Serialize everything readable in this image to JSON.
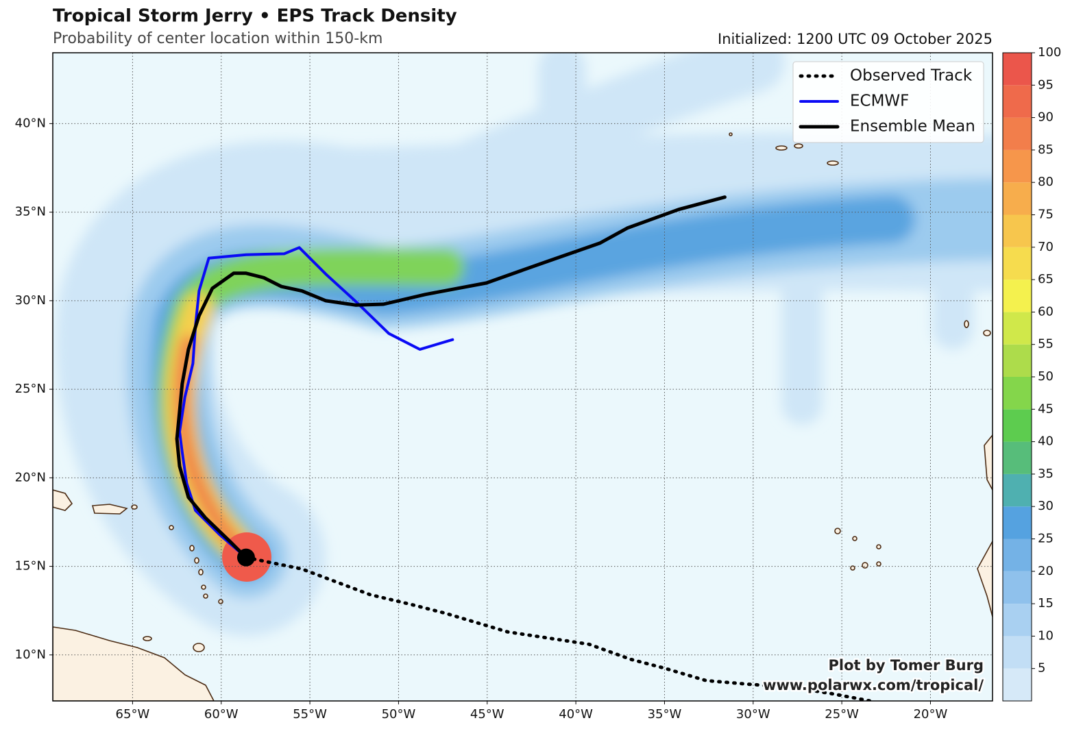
{
  "header": {
    "title": "Tropical Storm Jerry • EPS Track Density",
    "subtitle": "Probability of center location within 150-km",
    "initialized": "Initialized: 1200 UTC 09 October 2025"
  },
  "map": {
    "xlim": [
      -69.5,
      -16.5
    ],
    "ylim": [
      7.4,
      44.0
    ],
    "xticks": [
      {
        "value": -65,
        "label": "65°W"
      },
      {
        "value": -60,
        "label": "60°W"
      },
      {
        "value": -55,
        "label": "55°W"
      },
      {
        "value": -50,
        "label": "50°W"
      },
      {
        "value": -45,
        "label": "45°W"
      },
      {
        "value": -40,
        "label": "40°W"
      },
      {
        "value": -35,
        "label": "35°W"
      },
      {
        "value": -30,
        "label": "30°W"
      },
      {
        "value": -25,
        "label": "25°W"
      },
      {
        "value": -20,
        "label": "20°W"
      }
    ],
    "yticks": [
      {
        "value": 10,
        "label": "10°N"
      },
      {
        "value": 15,
        "label": "15°N"
      },
      {
        "value": 20,
        "label": "20°N"
      },
      {
        "value": 25,
        "label": "25°N"
      },
      {
        "value": 30,
        "label": "30°N"
      },
      {
        "value": 35,
        "label": "35°N"
      },
      {
        "value": 40,
        "label": "40°N"
      }
    ],
    "grid": true,
    "tracks": [
      {
        "name": "Observed Track",
        "color": "#000000",
        "style": "dotted",
        "lon": [
          -58.6,
          -55.45,
          -51.6,
          -49.3,
          -47.35,
          -43.85,
          -39.25,
          -36.9,
          -35.0,
          -32.65,
          -30.35,
          -27.65,
          -25.5,
          -23.4
        ],
        "lat": [
          15.5,
          14.85,
          13.4,
          12.85,
          12.35,
          11.3,
          10.6,
          9.75,
          9.25,
          8.55,
          8.35,
          8.15,
          7.8,
          7.4
        ]
      },
      {
        "name": "ECMWF",
        "color": "#0a0af5",
        "style": "solid",
        "lon": [
          -58.6,
          -60.1,
          -61.45,
          -61.95,
          -62.2,
          -62.35,
          -62.05,
          -61.6,
          -61.45,
          -61.25,
          -60.7,
          -58.6,
          -56.45,
          -55.6,
          -54.1,
          -52.4,
          -50.55,
          -48.8,
          -46.95
        ],
        "lat": [
          15.5,
          16.8,
          18.15,
          19.7,
          21.45,
          22.6,
          24.55,
          26.45,
          28.6,
          30.55,
          32.4,
          32.6,
          32.65,
          33.0,
          31.5,
          29.95,
          28.15,
          27.25,
          27.8
        ]
      },
      {
        "name": "Ensemble Mean",
        "color": "#000000",
        "style": "thick",
        "lon": [
          -58.6,
          -59.5,
          -60.9,
          -61.85,
          -62.35,
          -62.5,
          -62.35,
          -62.2,
          -61.85,
          -61.25,
          -60.5,
          -59.3,
          -58.6,
          -57.6,
          -56.6,
          -55.45,
          -54.1,
          -52.4,
          -50.85,
          -48.5,
          -45.05,
          -41.95,
          -38.65,
          -37.1,
          -34.2,
          -31.6
        ],
        "lat": [
          15.5,
          16.4,
          17.75,
          18.9,
          20.65,
          22.2,
          23.75,
          25.3,
          27.25,
          29.15,
          30.7,
          31.55,
          31.55,
          31.3,
          30.8,
          30.55,
          30.0,
          29.75,
          29.8,
          30.35,
          31.0,
          32.1,
          33.25,
          34.1,
          35.15,
          35.85
        ]
      }
    ],
    "colorbar": {
      "range": [
        0,
        100
      ],
      "ticks": [
        5,
        10,
        15,
        20,
        25,
        30,
        35,
        40,
        45,
        50,
        55,
        60,
        65,
        70,
        75,
        80,
        85,
        90,
        95,
        100
      ],
      "colors": [
        "#d6e9f8",
        "#c2def5",
        "#a9d0f1",
        "#8fc1ec",
        "#74b2e6",
        "#55a2e0",
        "#4fb0b0",
        "#57bd7a",
        "#5dcc4f",
        "#84d64b",
        "#addc4b",
        "#d0e84a",
        "#f4f14e",
        "#f6dc4e",
        "#f7c64d",
        "#f7ad4c",
        "#f6964b",
        "#f27e4b",
        "#ef6a4b",
        "#eb564b"
      ]
    },
    "credit": [
      "Plot by Tomer Burg",
      "www.polarwx.com/tropical/"
    ]
  }
}
